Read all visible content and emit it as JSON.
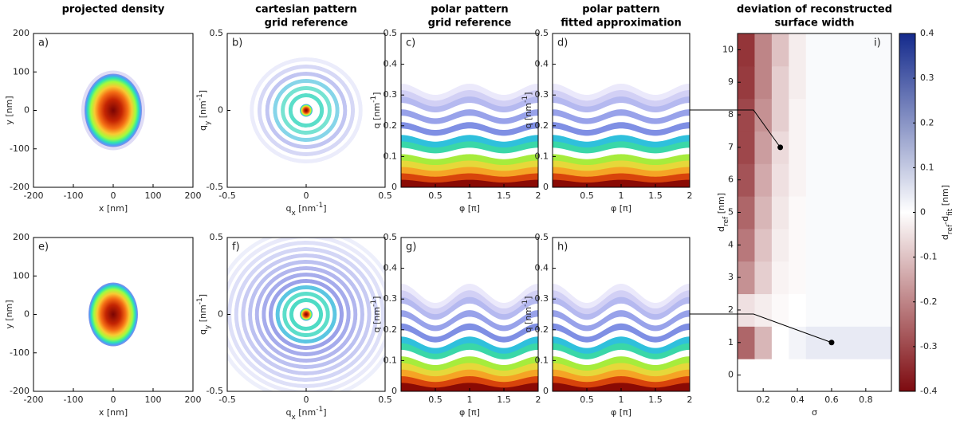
{
  "chart_data": [
    {
      "type": "density",
      "label": "a)",
      "title": [
        "projected density"
      ],
      "xlabel": [
        {
          "text": "x [nm]"
        }
      ],
      "ylabel": [
        {
          "text": "y [nm]"
        }
      ],
      "xlim": [
        -200,
        200
      ],
      "ylim": [
        -200,
        200
      ],
      "xticks": [
        -200,
        -100,
        0,
        100,
        200
      ],
      "yticks": [
        -200,
        -100,
        0,
        100,
        200
      ]
    },
    {
      "type": "pattern",
      "label": "b)",
      "title": [
        "cartesian pattern",
        "grid reference"
      ],
      "xlabel": [
        {
          "text": "q"
        },
        {
          "text": "x",
          "shift": "sub"
        },
        {
          "text": " [nm"
        },
        {
          "text": "-1",
          "shift": "super"
        },
        {
          "text": "]"
        }
      ],
      "ylabel": [
        {
          "text": "q"
        },
        {
          "text": "y",
          "shift": "sub"
        },
        {
          "text": " [nm"
        },
        {
          "text": "-1",
          "shift": "super"
        },
        {
          "text": "]"
        }
      ],
      "xlim": [
        -0.5,
        0.5
      ],
      "ylim": [
        -0.5,
        0.5
      ],
      "xticks": [
        -0.5,
        0,
        0.5
      ],
      "yticks": [
        -0.5,
        0,
        0.5
      ]
    },
    {
      "type": "polar",
      "label": "c)",
      "title": [
        "polar pattern",
        "grid reference"
      ],
      "xlabel": [
        {
          "text": "φ [π]"
        }
      ],
      "ylabel": [
        {
          "text": "q [nm"
        },
        {
          "text": "-1",
          "shift": "super"
        },
        {
          "text": "]"
        }
      ],
      "xlim": [
        0,
        2
      ],
      "ylim": [
        0,
        0.5
      ],
      "xticks": [
        0.5,
        1,
        1.5,
        2
      ],
      "yticks": [
        0,
        0.1,
        0.2,
        0.3,
        0.4,
        0.5
      ]
    },
    {
      "type": "polar",
      "label": "d)",
      "title": [
        "polar pattern",
        "fitted approximation"
      ],
      "xlabel": [
        {
          "text": "φ [π]"
        }
      ],
      "ylabel": [
        {
          "text": "q [nm"
        },
        {
          "text": "-1",
          "shift": "super"
        },
        {
          "text": "]"
        }
      ],
      "xlim": [
        0,
        2
      ],
      "ylim": [
        0,
        0.5
      ],
      "xticks": [
        0.5,
        1,
        1.5,
        2
      ],
      "yticks": [
        0,
        0.1,
        0.2,
        0.3,
        0.4,
        0.5
      ]
    },
    {
      "type": "density",
      "label": "e)",
      "xlabel": [
        {
          "text": "x [nm]"
        }
      ],
      "ylabel": [
        {
          "text": "y [nm]"
        }
      ],
      "xlim": [
        -200,
        200
      ],
      "ylim": [
        -200,
        200
      ],
      "xticks": [
        -200,
        -100,
        0,
        100,
        200
      ],
      "yticks": [
        -200,
        -100,
        0,
        100,
        200
      ]
    },
    {
      "type": "pattern",
      "label": "f)",
      "xlabel": [
        {
          "text": "q"
        },
        {
          "text": "x",
          "shift": "sub"
        },
        {
          "text": " [nm"
        },
        {
          "text": "-1",
          "shift": "super"
        },
        {
          "text": "]"
        }
      ],
      "ylabel": [
        {
          "text": "q"
        },
        {
          "text": "y",
          "shift": "sub"
        },
        {
          "text": " [nm"
        },
        {
          "text": "-1",
          "shift": "super"
        },
        {
          "text": "]"
        }
      ],
      "xlim": [
        -0.5,
        0.5
      ],
      "ylim": [
        -0.5,
        0.5
      ],
      "xticks": [
        -0.5,
        0,
        0.5
      ],
      "yticks": [
        -0.5,
        0,
        0.5
      ]
    },
    {
      "type": "polar",
      "label": "g)",
      "xlabel": [
        {
          "text": "φ [π]"
        }
      ],
      "ylabel": [
        {
          "text": "q [nm"
        },
        {
          "text": "-1",
          "shift": "super"
        },
        {
          "text": "]"
        }
      ],
      "xlim": [
        0,
        2
      ],
      "ylim": [
        0,
        0.5
      ],
      "xticks": [
        0.5,
        1,
        1.5,
        2
      ],
      "yticks": [
        0,
        0.1,
        0.2,
        0.3,
        0.4,
        0.5
      ]
    },
    {
      "type": "polar",
      "label": "h)",
      "xlabel": [
        {
          "text": "φ [π]"
        }
      ],
      "ylabel": [
        {
          "text": "q [nm"
        },
        {
          "text": "-1",
          "shift": "super"
        },
        {
          "text": "]"
        }
      ],
      "xlim": [
        0,
        2
      ],
      "ylim": [
        0,
        0.5
      ],
      "xticks": [
        0.5,
        1,
        1.5,
        2
      ],
      "yticks": [
        0,
        0.1,
        0.2,
        0.3,
        0.4,
        0.5
      ]
    },
    {
      "type": "heatmap",
      "label": "i)",
      "title": [
        "deviation of reconstructed",
        "surface width"
      ],
      "xlabel": [
        {
          "text": "σ"
        }
      ],
      "ylabel": [
        {
          "text": "d"
        },
        {
          "text": "ref",
          "shift": "sub"
        },
        {
          "text": " [nm]"
        }
      ],
      "xlim": [
        0.05,
        0.95
      ],
      "ylim": [
        -0.5,
        10.5
      ],
      "xticks": [
        0.2,
        0.4,
        0.6,
        0.8
      ],
      "yticks": [
        0,
        1,
        2,
        3,
        4,
        5,
        6,
        7,
        8,
        9,
        10
      ],
      "x": [
        0.1,
        0.2,
        0.3,
        0.4,
        0.5,
        0.6,
        0.7,
        0.8,
        0.9
      ],
      "y": [
        1,
        2,
        3,
        4,
        5,
        6,
        7,
        8,
        9,
        10
      ],
      "z": [
        [
          -0.25,
          -0.12,
          0,
          0.02,
          0.04,
          0.04,
          0.04,
          0.04,
          0.04
        ],
        [
          -0.05,
          -0.03,
          -0.01,
          0,
          0.01,
          0.01,
          0.01,
          0.01,
          0.01
        ],
        [
          -0.18,
          -0.08,
          -0.02,
          -0.01,
          0.01,
          0.01,
          0.01,
          0.01,
          0.01
        ],
        [
          -0.22,
          -0.1,
          -0.03,
          -0.01,
          0.01,
          0.01,
          0.01,
          0.01,
          0.01
        ],
        [
          -0.25,
          -0.12,
          -0.04,
          -0.01,
          0.01,
          0.01,
          0.01,
          0.01,
          0.01
        ],
        [
          -0.28,
          -0.14,
          -0.05,
          -0.02,
          0.01,
          0.01,
          0.01,
          0.01,
          0.01
        ],
        [
          -0.3,
          -0.16,
          -0.06,
          -0.02,
          0.01,
          0.01,
          0.01,
          0.01,
          0.01
        ],
        [
          -0.3,
          -0.18,
          -0.08,
          -0.02,
          0.01,
          0.01,
          0.01,
          0.01,
          0.01
        ],
        [
          -0.32,
          -0.2,
          -0.08,
          -0.03,
          0.01,
          0.01,
          0.01,
          0.01,
          0.01
        ],
        [
          -0.33,
          -0.2,
          -0.1,
          -0.03,
          0.01,
          0.01,
          0.01,
          0.01,
          0.01
        ]
      ],
      "clim": [
        -0.4,
        0.4
      ],
      "cticks": [
        -0.4,
        -0.3,
        -0.2,
        -0.1,
        0,
        0.1,
        0.2,
        0.3,
        0.4
      ],
      "clabel": [
        {
          "text": "d"
        },
        {
          "text": "ref",
          "shift": "sub"
        },
        {
          "text": "-d"
        },
        {
          "text": "fit",
          "shift": "sub"
        },
        {
          "text": " [nm]"
        }
      ],
      "markers": [
        {
          "x": 0.3,
          "y": 7
        },
        {
          "x": 0.6,
          "y": 1
        }
      ]
    }
  ]
}
